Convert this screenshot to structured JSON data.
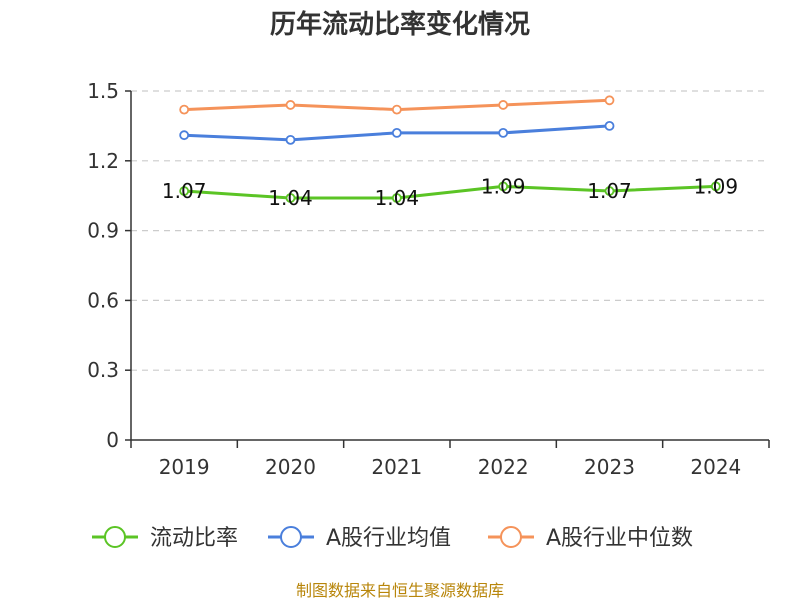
{
  "chart_data": {
    "type": "line",
    "title": "历年流动比率变化情况",
    "categories": [
      "2019",
      "2020",
      "2021",
      "2022",
      "2023",
      "2024"
    ],
    "ylim": [
      0,
      1.5
    ],
    "yticks": [
      "0",
      "0.3",
      "0.6",
      "0.9",
      "1.2",
      "1.5"
    ],
    "grid": true,
    "legend_position": "bottom",
    "series": [
      {
        "name": "流动比率",
        "color": "#5bc425",
        "values": [
          1.07,
          1.04,
          1.04,
          1.09,
          1.07,
          1.09
        ],
        "labels": [
          "1.07",
          "1.04",
          "1.04",
          "1.09",
          "1.07",
          "1.09"
        ]
      },
      {
        "name": "A股行业均值",
        "color": "#4a7fdc",
        "values": [
          1.31,
          1.29,
          1.32,
          1.32,
          1.35,
          null
        ]
      },
      {
        "name": "A股行业中位数",
        "color": "#f5935a",
        "values": [
          1.42,
          1.44,
          1.42,
          1.44,
          1.46,
          null
        ]
      }
    ],
    "source": "制图数据来自恒生聚源数据库"
  }
}
